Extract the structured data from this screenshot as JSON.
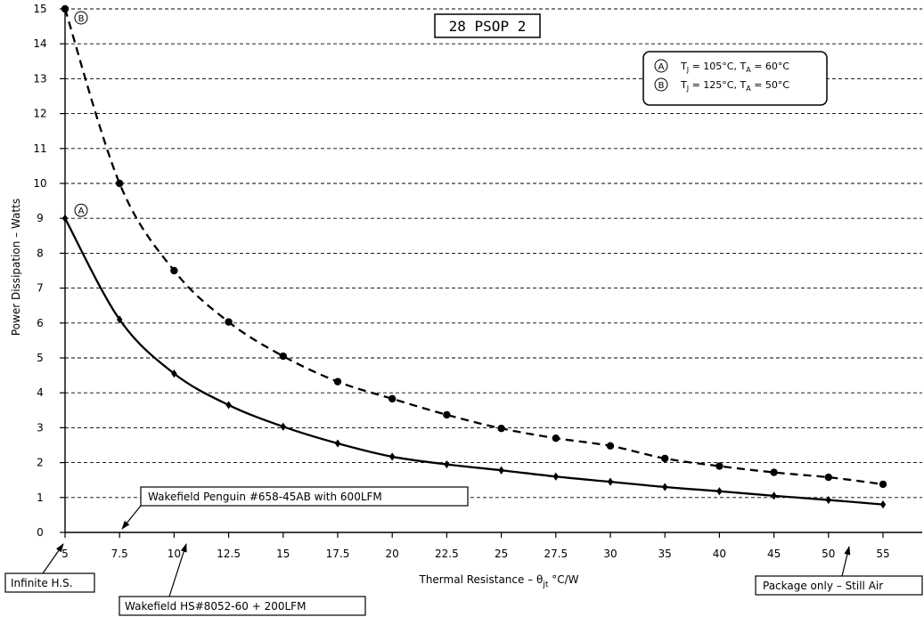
{
  "chart_data": {
    "type": "line",
    "title": "28 PSOP 2",
    "xlabel": "Thermal Resistance – θjt °C/W",
    "xlabel_parts": {
      "main": "Thermal Resistance – θ",
      "sub": "jt",
      "unit": " °C/W"
    },
    "ylabel": "Power Dissipation – Watts",
    "xlim": [
      5,
      55
    ],
    "ylim": [
      0,
      15
    ],
    "xticks": [
      5,
      7.5,
      10,
      12.5,
      15,
      17.5,
      20,
      22.5,
      25,
      27.5,
      30,
      35,
      40,
      45,
      50,
      55
    ],
    "xtick_labels": [
      "5",
      "7.5",
      "10",
      "12.5",
      "15",
      "17.5",
      "20",
      "22.5",
      "25",
      "27.5",
      "30",
      "35",
      "40",
      "45",
      "50",
      "55"
    ],
    "yticks": [
      0,
      1,
      2,
      3,
      4,
      5,
      6,
      7,
      8,
      9,
      10,
      11,
      12,
      13,
      14,
      15
    ],
    "grid": "horizontal dashed",
    "legend_position": "top-right",
    "legend": [
      {
        "key": "A",
        "text": "TJ = 105°C, TA = 60°C",
        "tj_label": "T",
        "tj_sub": "J",
        "tj_value": " = 105°C, ",
        "ta_label": "T",
        "ta_sub": "A",
        "ta_value": " = 60°C"
      },
      {
        "key": "B",
        "text": "TJ = 125°C, TA = 50°C",
        "tj_label": "T",
        "tj_sub": "J",
        "tj_value": " = 125°C, ",
        "ta_label": "T",
        "ta_sub": "A",
        "ta_value": " = 50°C"
      }
    ],
    "series": [
      {
        "name": "A",
        "line_style": "solid",
        "marker": "diamond",
        "x": [
          5,
          7.5,
          10,
          12.5,
          15,
          17.5,
          20,
          22.5,
          25,
          27.5,
          30,
          35,
          40,
          45,
          50,
          55
        ],
        "y": [
          9.0,
          6.1,
          4.55,
          3.65,
          3.03,
          2.55,
          2.17,
          1.95,
          1.78,
          1.6,
          1.45,
          1.3,
          1.18,
          1.05,
          0.93,
          0.8
        ]
      },
      {
        "name": "B",
        "line_style": "dashed",
        "marker": "circle",
        "x": [
          5,
          7.5,
          10,
          12.5,
          15,
          17.5,
          20,
          22.5,
          25,
          27.5,
          30,
          35,
          40,
          45,
          50,
          55
        ],
        "y": [
          15.0,
          10.0,
          7.5,
          6.03,
          5.05,
          4.32,
          3.83,
          3.37,
          2.98,
          2.7,
          2.48,
          2.12,
          1.9,
          1.72,
          1.58,
          1.38
        ]
      }
    ],
    "annotations": [
      {
        "text": "Wakefield Penguin #658-45AB with 600LFM",
        "points_to_x": 7.5,
        "position": "bottom-left, above axis"
      },
      {
        "text": "Infinite H.S.",
        "points_to_x": 5,
        "position": "below axis"
      },
      {
        "text": "Wakefield HS#8052-60 + 200LFM",
        "points_to_x": 10,
        "position": "below axis"
      },
      {
        "text": "Package only – Still Air",
        "points_to_x": 50,
        "position": "below axis, right"
      }
    ],
    "colors": {
      "line": "#000000",
      "grid": "#000000",
      "background": "#ffffff"
    }
  }
}
